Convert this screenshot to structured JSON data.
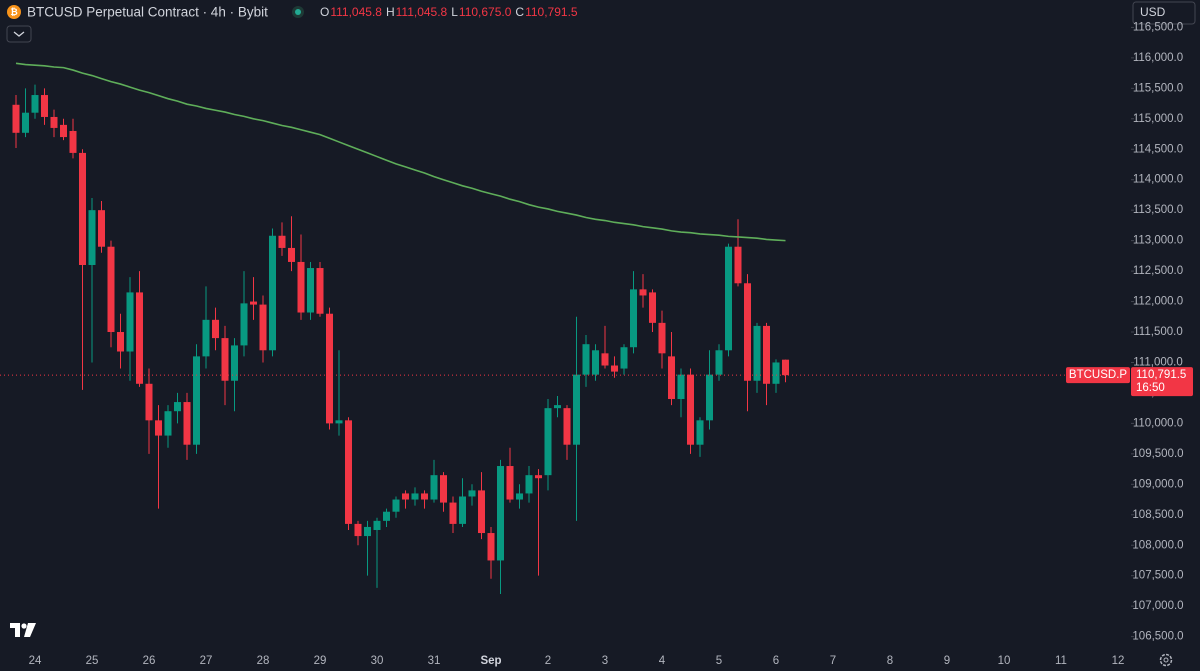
{
  "header": {
    "symbol": "BTCUSD Perpetual Contract · 4h · Bybit",
    "ohlc": [
      {
        "key": "O",
        "value": "111,045.8"
      },
      {
        "key": "H",
        "value": "111,045.8"
      },
      {
        "key": "L",
        "value": "110,675.0"
      },
      {
        "key": "C",
        "value": "110,791.5"
      }
    ],
    "currency": "USD"
  },
  "price_tag": {
    "symbol": "BTCUSD.P",
    "price": "110,791.5",
    "countdown": "16:50"
  },
  "chart_data": {
    "type": "candlestick",
    "grid": false,
    "up_color": "#089981",
    "down_color": "#f23645",
    "ma_color": "#5fae5a",
    "ylim": [
      106280,
      116950
    ],
    "yticks": [
      {
        "value": 106500,
        "label": "106,500.0"
      },
      {
        "value": 107000,
        "label": "107,000.0"
      },
      {
        "value": 107500,
        "label": "107,500.0"
      },
      {
        "value": 108000,
        "label": "108,000.0"
      },
      {
        "value": 108500,
        "label": "108,500.0"
      },
      {
        "value": 109000,
        "label": "109,000.0"
      },
      {
        "value": 109500,
        "label": "109,500.0"
      },
      {
        "value": 110000,
        "label": "110,000.0"
      },
      {
        "value": 110500,
        "label": "110,500.0"
      },
      {
        "value": 111000,
        "label": "111,000.0"
      },
      {
        "value": 111500,
        "label": "111,500.0"
      },
      {
        "value": 112000,
        "label": "112,000.0"
      },
      {
        "value": 112500,
        "label": "112,500.0"
      },
      {
        "value": 113000,
        "label": "113,000.0"
      },
      {
        "value": 113500,
        "label": "113,500.0"
      },
      {
        "value": 114000,
        "label": "114,000.0"
      },
      {
        "value": 114500,
        "label": "114,500.0"
      },
      {
        "value": 115000,
        "label": "115,000.0"
      },
      {
        "value": 115500,
        "label": "115,500.0"
      },
      {
        "value": 116000,
        "label": "116,000.0"
      },
      {
        "value": 116500,
        "label": "116,500.0"
      }
    ],
    "categories": [
      null,
      null,
      "24",
      null,
      null,
      null,
      null,
      null,
      "25",
      null,
      null,
      null,
      null,
      null,
      "26",
      null,
      null,
      null,
      null,
      null,
      "27",
      null,
      null,
      null,
      null,
      null,
      "28",
      null,
      null,
      null,
      null,
      null,
      "29",
      null,
      null,
      null,
      null,
      null,
      "30",
      null,
      null,
      null,
      null,
      null,
      "31",
      null,
      null,
      null,
      null,
      null,
      "Sep",
      null,
      null,
      null,
      null,
      null,
      "2",
      null,
      null,
      null,
      null,
      null,
      "3",
      null,
      null,
      null,
      null,
      null,
      "4",
      null,
      null,
      null,
      null,
      null,
      "5",
      null,
      null,
      null,
      null,
      null,
      "6",
      null,
      null,
      null,
      null,
      null,
      "7",
      null,
      null,
      null,
      null,
      null,
      "8",
      null,
      null,
      null,
      null,
      null,
      "9",
      null,
      null,
      null,
      null,
      null,
      "10",
      null,
      null,
      null,
      null,
      null,
      "11",
      null,
      null,
      null,
      null,
      null,
      "12"
    ],
    "open": [
      115230,
      114770,
      115100,
      115390,
      115030,
      114900,
      114800,
      114440,
      112600,
      113500,
      112900,
      111500,
      111180,
      112150,
      110650,
      110050,
      109800,
      110200,
      110350,
      109650,
      111100,
      111700,
      111400,
      110700,
      111280,
      112000,
      111950,
      111200,
      113080,
      112880,
      112650,
      111820,
      112550,
      111800,
      110000,
      110050,
      108350,
      108150,
      108250,
      108400,
      108550,
      108850,
      108750,
      108850,
      108750,
      109150,
      108700,
      108350,
      108800,
      108900,
      108200,
      107750,
      109300,
      108750,
      108850,
      109150,
      109150,
      110250,
      110250,
      109650,
      110800,
      110800,
      111150,
      110950,
      110900,
      111250,
      112200,
      112150,
      111650,
      111100,
      110400,
      110800,
      109650,
      110050,
      110800,
      111200,
      112900,
      112300,
      110700,
      111600,
      110650,
      111045.8,
      null,
      null,
      null,
      null,
      null,
      null,
      null,
      null,
      null,
      null,
      null,
      null,
      null,
      null,
      null,
      null,
      null,
      null,
      null,
      null,
      null,
      null,
      null,
      null,
      null,
      null,
      null,
      null,
      null,
      null,
      null,
      null,
      null,
      null,
      null
    ],
    "high": [
      115390,
      115500,
      115560,
      115500,
      115150,
      115000,
      115000,
      114500,
      113700,
      113650,
      113000,
      111800,
      112400,
      112500,
      110900,
      110300,
      110300,
      110500,
      110500,
      111300,
      112250,
      111900,
      111600,
      111400,
      112500,
      112400,
      112100,
      113200,
      113300,
      113400,
      113100,
      112650,
      112650,
      111900,
      111200,
      110100,
      108400,
      108400,
      108450,
      108600,
      108800,
      108900,
      108950,
      108900,
      109400,
      109200,
      108800,
      109100,
      109000,
      109200,
      108300,
      109400,
      109600,
      109000,
      109300,
      109250,
      110400,
      110450,
      110300,
      111750,
      111450,
      111300,
      111600,
      111100,
      111300,
      112500,
      112450,
      112200,
      111850,
      111500,
      110900,
      110900,
      110100,
      111200,
      111300,
      112950,
      113350,
      112450,
      111650,
      111650,
      111050,
      111045.8,
      null,
      null,
      null,
      null,
      null,
      null,
      null,
      null,
      null,
      null,
      null,
      null,
      null,
      null,
      null,
      null,
      null,
      null,
      null,
      null,
      null,
      null,
      null,
      null,
      null,
      null,
      null,
      null,
      null,
      null,
      null,
      null,
      null,
      null,
      null
    ],
    "low": [
      114520,
      114700,
      115000,
      114900,
      114700,
      114650,
      114350,
      110550,
      111000,
      112800,
      111250,
      110900,
      110700,
      110600,
      109500,
      108600,
      109600,
      110000,
      109400,
      109500,
      110900,
      111200,
      110300,
      110200,
      111100,
      111700,
      111000,
      111100,
      112750,
      112500,
      111700,
      111700,
      111750,
      109900,
      109800,
      108250,
      108000,
      107500,
      107300,
      108300,
      108450,
      108600,
      108650,
      108600,
      108700,
      108550,
      108200,
      108300,
      108650,
      108100,
      107450,
      107200,
      108700,
      108600,
      108700,
      107500,
      108900,
      110100,
      109400,
      108400,
      110600,
      110700,
      110900,
      110750,
      110800,
      111150,
      111900,
      111500,
      110900,
      110300,
      110100,
      109500,
      109450,
      109900,
      110700,
      111100,
      112250,
      110200,
      110500,
      110300,
      110500,
      110675,
      null,
      null,
      null,
      null,
      null,
      null,
      null,
      null,
      null,
      null,
      null,
      null,
      null,
      null,
      null,
      null,
      null,
      null,
      null,
      null,
      null,
      null,
      null,
      null,
      null,
      null,
      null,
      null,
      null,
      null,
      null,
      null,
      null,
      null,
      null
    ],
    "close": [
      114770,
      115100,
      115390,
      115030,
      114850,
      114700,
      114440,
      112600,
      113500,
      112900,
      111500,
      111180,
      112150,
      110650,
      110050,
      109800,
      110200,
      110350,
      109650,
      111100,
      111700,
      111400,
      110700,
      111280,
      111970,
      111950,
      111200,
      113080,
      112880,
      112650,
      111820,
      112550,
      111800,
      110000,
      110050,
      108350,
      108150,
      108300,
      108400,
      108550,
      108750,
      108750,
      108850,
      108750,
      109150,
      108700,
      108350,
      108800,
      108900,
      108200,
      107750,
      109300,
      108750,
      108850,
      109150,
      109100,
      110250,
      110300,
      109650,
      110800,
      111300,
      111200,
      110950,
      110850,
      111250,
      112200,
      112100,
      111650,
      111150,
      110400,
      110800,
      109650,
      110050,
      110800,
      111200,
      112900,
      112300,
      110700,
      111600,
      110650,
      111000,
      110791.5,
      null,
      null,
      null,
      null,
      null,
      null,
      null,
      null,
      null,
      null,
      null,
      null,
      null,
      null,
      null,
      null,
      null,
      null,
      null,
      null,
      null,
      null,
      null,
      null,
      null,
      null,
      null,
      null,
      null,
      null,
      null,
      null,
      null,
      null,
      null
    ],
    "ma_values": [
      115910,
      115890,
      115880,
      115870,
      115850,
      115840,
      115800,
      115750,
      115710,
      115660,
      115610,
      115570,
      115520,
      115470,
      115430,
      115380,
      115330,
      115290,
      115240,
      115210,
      115170,
      115140,
      115110,
      115070,
      115040,
      115000,
      114970,
      114930,
      114890,
      114860,
      114820,
      114780,
      114740,
      114680,
      114620,
      114560,
      114500,
      114440,
      114380,
      114320,
      114260,
      114210,
      114160,
      114110,
      114050,
      114000,
      113950,
      113900,
      113860,
      113810,
      113770,
      113730,
      113680,
      113640,
      113590,
      113550,
      113520,
      113480,
      113450,
      113420,
      113380,
      113350,
      113330,
      113300,
      113280,
      113260,
      113230,
      113210,
      113190,
      113160,
      113140,
      113130,
      113110,
      113100,
      113090,
      113070,
      113060,
      113050,
      113040,
      113020,
      113010,
      113000,
      null,
      null,
      null,
      null,
      null,
      null,
      null,
      null,
      null,
      null,
      null,
      null,
      null,
      null,
      null,
      null,
      null,
      null,
      null,
      null,
      null,
      null,
      null,
      null,
      null,
      null,
      null,
      null,
      null,
      null,
      null,
      null,
      null,
      null,
      null
    ]
  }
}
